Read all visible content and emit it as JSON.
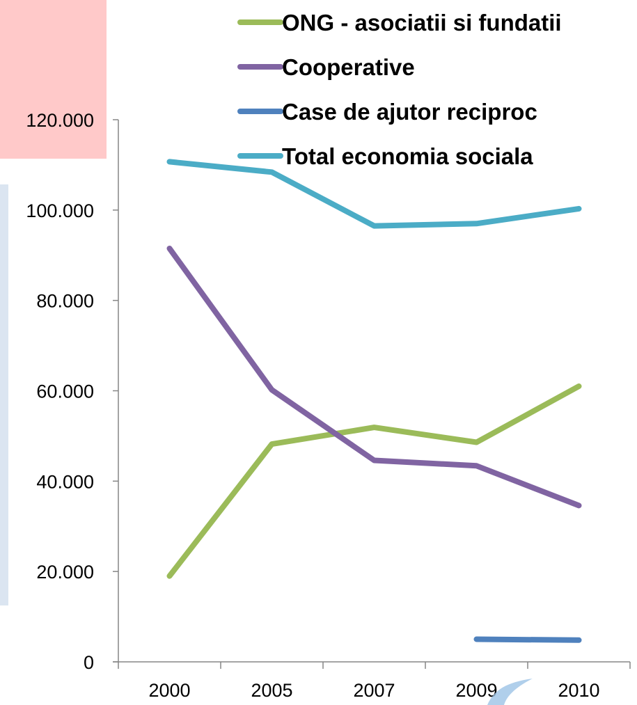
{
  "chart_data": {
    "type": "line",
    "title": "",
    "xlabel": "",
    "ylabel": "",
    "categories": [
      "2000",
      "2005",
      "2007",
      "2009",
      "2010"
    ],
    "ylim": [
      0,
      120000
    ],
    "yticks": [
      0,
      20000,
      40000,
      60000,
      80000,
      100000,
      120000
    ],
    "ytick_labels": [
      "0",
      "20.000",
      "40.000",
      "60.000",
      "80.000",
      "100.000",
      "120.000"
    ],
    "grid": false,
    "legend_position": "top-right",
    "series": [
      {
        "name": "ONG - asociatii si fundatii",
        "color": "#9bbb59",
        "values": [
          19000,
          48200,
          51900,
          48600,
          61000
        ]
      },
      {
        "name": "Cooperative",
        "color": "#8064a2",
        "values": [
          91500,
          60200,
          44600,
          43400,
          34600
        ]
      },
      {
        "name": "Case de ajutor reciproc",
        "color": "#4f81bd",
        "values": [
          null,
          null,
          null,
          5000,
          4800
        ]
      },
      {
        "name": "Total economia sociala",
        "color": "#4bacc6",
        "values": [
          110700,
          108400,
          96500,
          97000,
          100300
        ]
      }
    ]
  }
}
